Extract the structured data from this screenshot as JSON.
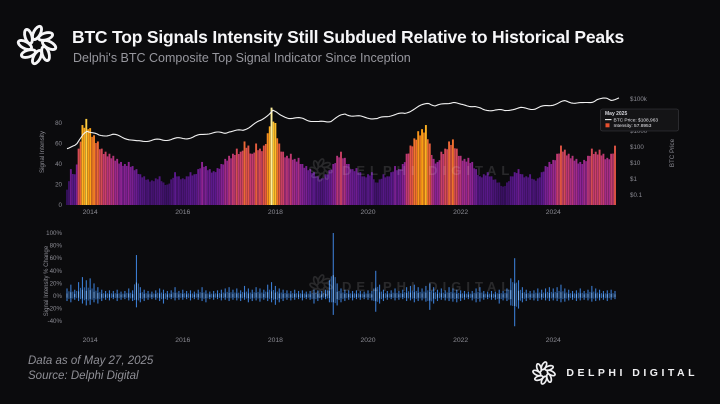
{
  "header": {
    "title": "BTC Top Signals Intensity Still Subdued Relative to Historical Peaks",
    "subtitle": "Delphi's BTC Composite Top Signal Indicator Since Inception"
  },
  "watermark": {
    "text": "DELPHI DIGITAL"
  },
  "footer": {
    "data_as_of": "Data as of May 27, 2025",
    "source": "Source: Delphi  Digital",
    "brand": "DELPHI DIGITAL"
  },
  "colors": {
    "background": "#0b0b0d",
    "text_primary": "#f6f6f8",
    "text_secondary": "#97979e",
    "tick_label": "#8b8b93",
    "price_line": "#f2f2f2",
    "pct_bar": "#3a7bd0",
    "pct_bar_bright": "#74aef2",
    "pct_bar_dim": "#2c62a8",
    "legend_intensity_marker": "#e8502f",
    "legend_box_bg": "#141416",
    "legend_box_border": "#3f3f44",
    "intensity_colormap": [
      [
        0,
        "#1c0b3a"
      ],
      [
        20,
        "#3c1166"
      ],
      [
        32,
        "#5b198c"
      ],
      [
        42,
        "#8f2494"
      ],
      [
        50,
        "#c23a70"
      ],
      [
        58,
        "#e25544"
      ],
      [
        66,
        "#f47a27"
      ],
      [
        74,
        "#fb9e15"
      ],
      [
        82,
        "#fdc42e"
      ],
      [
        90,
        "#fde97a"
      ],
      [
        100,
        "#fff6c0"
      ]
    ]
  },
  "chart_data": [
    {
      "type": "bar",
      "name": "btc-composite-top-signal-intensity",
      "title": "Delphi's BTC Composite Top Signal Indicator Since Inception",
      "ylabel": "Signal Intensity",
      "ylabel_right": "BTC Price",
      "ylim": [
        0,
        102
      ],
      "yticks_left": [
        0,
        20,
        40,
        60,
        80
      ],
      "yticks_right_labels": [
        "$100k",
        "$1000",
        "$100",
        "$10",
        "$1",
        "$0.1"
      ],
      "yticks_right_values": [
        100000,
        1000,
        100,
        10,
        1,
        0.1
      ],
      "right_axis_scale": "log",
      "xticks": [
        2014,
        2016,
        2018,
        2020,
        2022,
        2024
      ],
      "start_month": "2013-07",
      "end_month": "2025-05",
      "legend": {
        "period": "May 2025",
        "btc_price": "BTC Price: $108,963",
        "intensity": "Intensity: 57.8953"
      },
      "intensity_monthly": [
        15,
        35,
        30,
        55,
        78,
        84,
        75,
        68,
        62,
        55,
        52,
        50,
        48,
        45,
        42,
        40,
        42,
        38,
        35,
        30,
        28,
        25,
        24,
        26,
        28,
        22,
        20,
        25,
        32,
        28,
        26,
        28,
        32,
        30,
        35,
        42,
        38,
        35,
        33,
        36,
        40,
        45,
        48,
        50,
        55,
        52,
        62,
        58,
        50,
        60,
        55,
        58,
        70,
        95,
        80,
        60,
        52,
        48,
        50,
        45,
        46,
        40,
        38,
        35,
        32,
        28,
        26,
        30,
        34,
        40,
        48,
        52,
        46,
        40,
        35,
        36,
        32,
        28,
        30,
        32,
        22,
        25,
        30,
        28,
        32,
        38,
        35,
        40,
        50,
        58,
        65,
        72,
        74,
        78,
        60,
        45,
        42,
        52,
        55,
        62,
        64,
        55,
        48,
        45,
        46,
        42,
        35,
        28,
        30,
        32,
        28,
        25,
        22,
        18,
        22,
        28,
        32,
        35,
        30,
        28,
        30,
        25,
        26,
        32,
        38,
        42,
        44,
        50,
        58,
        54,
        50,
        48,
        45,
        42,
        44,
        48,
        55,
        52,
        54,
        50,
        46,
        50,
        57.9
      ],
      "btc_price_anchors": [
        [
          2013.5,
          95
        ],
        [
          2013.7,
          130
        ],
        [
          2013.85,
          700
        ],
        [
          2013.92,
          1120
        ],
        [
          2014.0,
          810
        ],
        [
          2014.2,
          460
        ],
        [
          2014.5,
          590
        ],
        [
          2014.8,
          370
        ],
        [
          2015.0,
          230
        ],
        [
          2015.3,
          245
        ],
        [
          2015.6,
          260
        ],
        [
          2015.9,
          360
        ],
        [
          2016.2,
          420
        ],
        [
          2016.5,
          670
        ],
        [
          2016.9,
          730
        ],
        [
          2017.0,
          970
        ],
        [
          2017.3,
          1200
        ],
        [
          2017.5,
          2500
        ],
        [
          2017.7,
          4300
        ],
        [
          2017.95,
          19000
        ],
        [
          2018.1,
          8500
        ],
        [
          2018.3,
          7000
        ],
        [
          2018.6,
          6400
        ],
        [
          2018.92,
          3300
        ],
        [
          2019.2,
          4000
        ],
        [
          2019.5,
          12000
        ],
        [
          2019.7,
          9500
        ],
        [
          2020.0,
          7200
        ],
        [
          2020.2,
          5200
        ],
        [
          2020.5,
          9200
        ],
        [
          2020.8,
          13000
        ],
        [
          2020.95,
          23000
        ],
        [
          2021.1,
          35000
        ],
        [
          2021.3,
          61000
        ],
        [
          2021.45,
          35000
        ],
        [
          2021.6,
          40000
        ],
        [
          2021.85,
          66000
        ],
        [
          2022.0,
          43000
        ],
        [
          2022.3,
          40000
        ],
        [
          2022.5,
          19500
        ],
        [
          2022.75,
          20000
        ],
        [
          2022.95,
          16200
        ],
        [
          2023.1,
          23000
        ],
        [
          2023.3,
          28500
        ],
        [
          2023.6,
          26500
        ],
        [
          2023.85,
          36000
        ],
        [
          2024.1,
          48000
        ],
        [
          2024.25,
          69000
        ],
        [
          2024.45,
          62000
        ],
        [
          2024.65,
          57000
        ],
        [
          2024.85,
          75000
        ],
        [
          2024.95,
          97000
        ],
        [
          2025.05,
          95000
        ],
        [
          2025.15,
          102000
        ],
        [
          2025.25,
          83000
        ],
        [
          2025.35,
          96000
        ],
        [
          2025.45,
          108963
        ]
      ]
    },
    {
      "type": "bar",
      "name": "signal-intensity-pct-change",
      "ylabel": "Signal Intensity % Change",
      "ylim": [
        -50,
        105
      ],
      "ytick_labels": [
        "100%",
        "80%",
        "60%",
        "40%",
        "20%",
        "0%",
        "-20%",
        "-40%"
      ],
      "ytick_values": [
        100,
        80,
        60,
        40,
        20,
        0,
        -20,
        -40
      ],
      "xticks": [
        2014,
        2016,
        2018,
        2020,
        2022,
        2024
      ],
      "start_month": "2013-07",
      "end_month": "2025-05",
      "pct_change_monthly_hi_lo": [
        [
          12,
          -8
        ],
        [
          18,
          -10
        ],
        [
          10,
          -6
        ],
        [
          22,
          -8
        ],
        [
          30,
          -12
        ],
        [
          25,
          -15
        ],
        [
          28,
          -14
        ],
        [
          20,
          -10
        ],
        [
          14,
          -12
        ],
        [
          10,
          -8
        ],
        [
          8,
          -6
        ],
        [
          9,
          -7
        ],
        [
          8,
          -5
        ],
        [
          10,
          -8
        ],
        [
          7,
          -6
        ],
        [
          8,
          -5
        ],
        [
          12,
          -7
        ],
        [
          9,
          -8
        ],
        [
          65,
          -18
        ],
        [
          14,
          -10
        ],
        [
          10,
          -8
        ],
        [
          8,
          -6
        ],
        [
          7,
          -5
        ],
        [
          9,
          -6
        ],
        [
          12,
          -8
        ],
        [
          10,
          -12
        ],
        [
          8,
          -6
        ],
        [
          9,
          -5
        ],
        [
          14,
          -7
        ],
        [
          8,
          -6
        ],
        [
          10,
          -6
        ],
        [
          8,
          -5
        ],
        [
          9,
          -7
        ],
        [
          7,
          -5
        ],
        [
          10,
          -6
        ],
        [
          14,
          -8
        ],
        [
          9,
          -10
        ],
        [
          7,
          -5
        ],
        [
          8,
          -6
        ],
        [
          9,
          -5
        ],
        [
          10,
          -7
        ],
        [
          12,
          -6
        ],
        [
          14,
          -8
        ],
        [
          10,
          -6
        ],
        [
          12,
          -7
        ],
        [
          9,
          -8
        ],
        [
          16,
          -6
        ],
        [
          12,
          -10
        ],
        [
          10,
          -8
        ],
        [
          14,
          -7
        ],
        [
          12,
          -9
        ],
        [
          10,
          -6
        ],
        [
          18,
          -8
        ],
        [
          22,
          -10
        ],
        [
          16,
          -14
        ],
        [
          12,
          -10
        ],
        [
          10,
          -8
        ],
        [
          9,
          -6
        ],
        [
          8,
          -7
        ],
        [
          10,
          -6
        ],
        [
          8,
          -5
        ],
        [
          9,
          -7
        ],
        [
          7,
          -5
        ],
        [
          8,
          -6
        ],
        [
          10,
          -12
        ],
        [
          9,
          -8
        ],
        [
          8,
          -6
        ],
        [
          10,
          -5
        ],
        [
          25,
          -10
        ],
        [
          100,
          -30
        ],
        [
          20,
          -15
        ],
        [
          12,
          -10
        ],
        [
          10,
          -8
        ],
        [
          9,
          -6
        ],
        [
          8,
          -7
        ],
        [
          9,
          -5
        ],
        [
          8,
          -6
        ],
        [
          7,
          -5
        ],
        [
          9,
          -6
        ],
        [
          8,
          -7
        ],
        [
          40,
          -25
        ],
        [
          18,
          -12
        ],
        [
          10,
          -8
        ],
        [
          8,
          -6
        ],
        [
          9,
          -5
        ],
        [
          12,
          -7
        ],
        [
          8,
          -6
        ],
        [
          10,
          -5
        ],
        [
          14,
          -8
        ],
        [
          16,
          -7
        ],
        [
          18,
          -10
        ],
        [
          14,
          -8
        ],
        [
          12,
          -7
        ],
        [
          16,
          -9
        ],
        [
          20,
          -22
        ],
        [
          14,
          -12
        ],
        [
          10,
          -8
        ],
        [
          12,
          -6
        ],
        [
          9,
          -7
        ],
        [
          14,
          -8
        ],
        [
          12,
          -9
        ],
        [
          10,
          -10
        ],
        [
          9,
          -8
        ],
        [
          8,
          -6
        ],
        [
          7,
          -5
        ],
        [
          8,
          -7
        ],
        [
          12,
          -10
        ],
        [
          14,
          -9
        ],
        [
          8,
          -6
        ],
        [
          7,
          -5
        ],
        [
          8,
          -6
        ],
        [
          7,
          -6
        ],
        [
          10,
          -12
        ],
        [
          8,
          -7
        ],
        [
          12,
          -8
        ],
        [
          28,
          -15
        ],
        [
          60,
          -48
        ],
        [
          25,
          -20
        ],
        [
          14,
          -10
        ],
        [
          10,
          -8
        ],
        [
          8,
          -6
        ],
        [
          9,
          -7
        ],
        [
          12,
          -8
        ],
        [
          10,
          -6
        ],
        [
          12,
          -7
        ],
        [
          14,
          -8
        ],
        [
          12,
          -7
        ],
        [
          14,
          -8
        ],
        [
          18,
          -10
        ],
        [
          12,
          -9
        ],
        [
          10,
          -7
        ],
        [
          8,
          -6
        ],
        [
          9,
          -8
        ],
        [
          12,
          -7
        ],
        [
          8,
          -6
        ],
        [
          10,
          -7
        ],
        [
          16,
          -9
        ],
        [
          12,
          -8
        ],
        [
          10,
          -7
        ],
        [
          8,
          -6
        ],
        [
          9,
          -8
        ],
        [
          10,
          -6
        ],
        [
          8,
          -5
        ]
      ]
    }
  ]
}
